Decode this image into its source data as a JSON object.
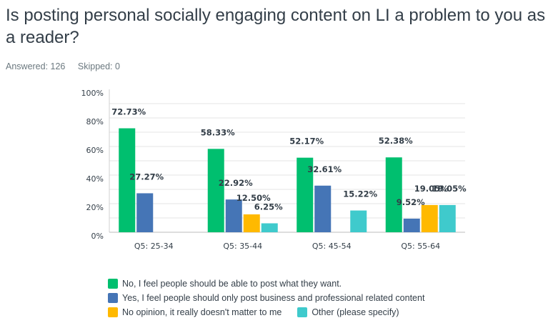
{
  "header": {
    "title": "Is posting personal socially engaging content on LI a problem to you as a reader?",
    "answered": "Answered: 126",
    "skipped": "Skipped: 0"
  },
  "chart_data": {
    "type": "bar",
    "title": "Is posting personal socially engaging content on LI a problem to you as a reader?",
    "xlabel": "",
    "ylabel": "",
    "ylim": [
      0,
      100
    ],
    "yticks": [
      "0%",
      "20%",
      "40%",
      "60%",
      "80%",
      "100%"
    ],
    "ytick_values": [
      0,
      20,
      40,
      60,
      80,
      100
    ],
    "grid": true,
    "grid_step": 10,
    "legend_position": "bottom",
    "categories": [
      "Q5: 25-34",
      "Q5: 35-44",
      "Q5: 45-54",
      "Q5: 55-64"
    ],
    "series": [
      {
        "name": "No, I feel people should be able to post what they want.",
        "color": "#00bf6f",
        "values": [
          72.73,
          58.33,
          52.17,
          52.38
        ],
        "labels": [
          "72.73%",
          "58.33%",
          "52.17%",
          "52.38%"
        ]
      },
      {
        "name": "Yes, I feel people should only post business and professional related content",
        "color": "#4575b6",
        "values": [
          27.27,
          22.92,
          32.61,
          9.52
        ],
        "labels": [
          "27.27%",
          "22.92%",
          "32.61%",
          "9.52%"
        ]
      },
      {
        "name": "No opinion, it really doesn't matter to me",
        "color": "#ffb900",
        "values": [
          0,
          12.5,
          0,
          19.05
        ],
        "labels": [
          "",
          "12.50%",
          "",
          "19.05%"
        ]
      },
      {
        "name": "Other (please specify)",
        "color": "#3fcacc",
        "values": [
          0,
          6.25,
          15.22,
          19.05
        ],
        "labels": [
          "",
          "6.25%",
          "15.22%",
          "19.05%"
        ]
      }
    ]
  }
}
